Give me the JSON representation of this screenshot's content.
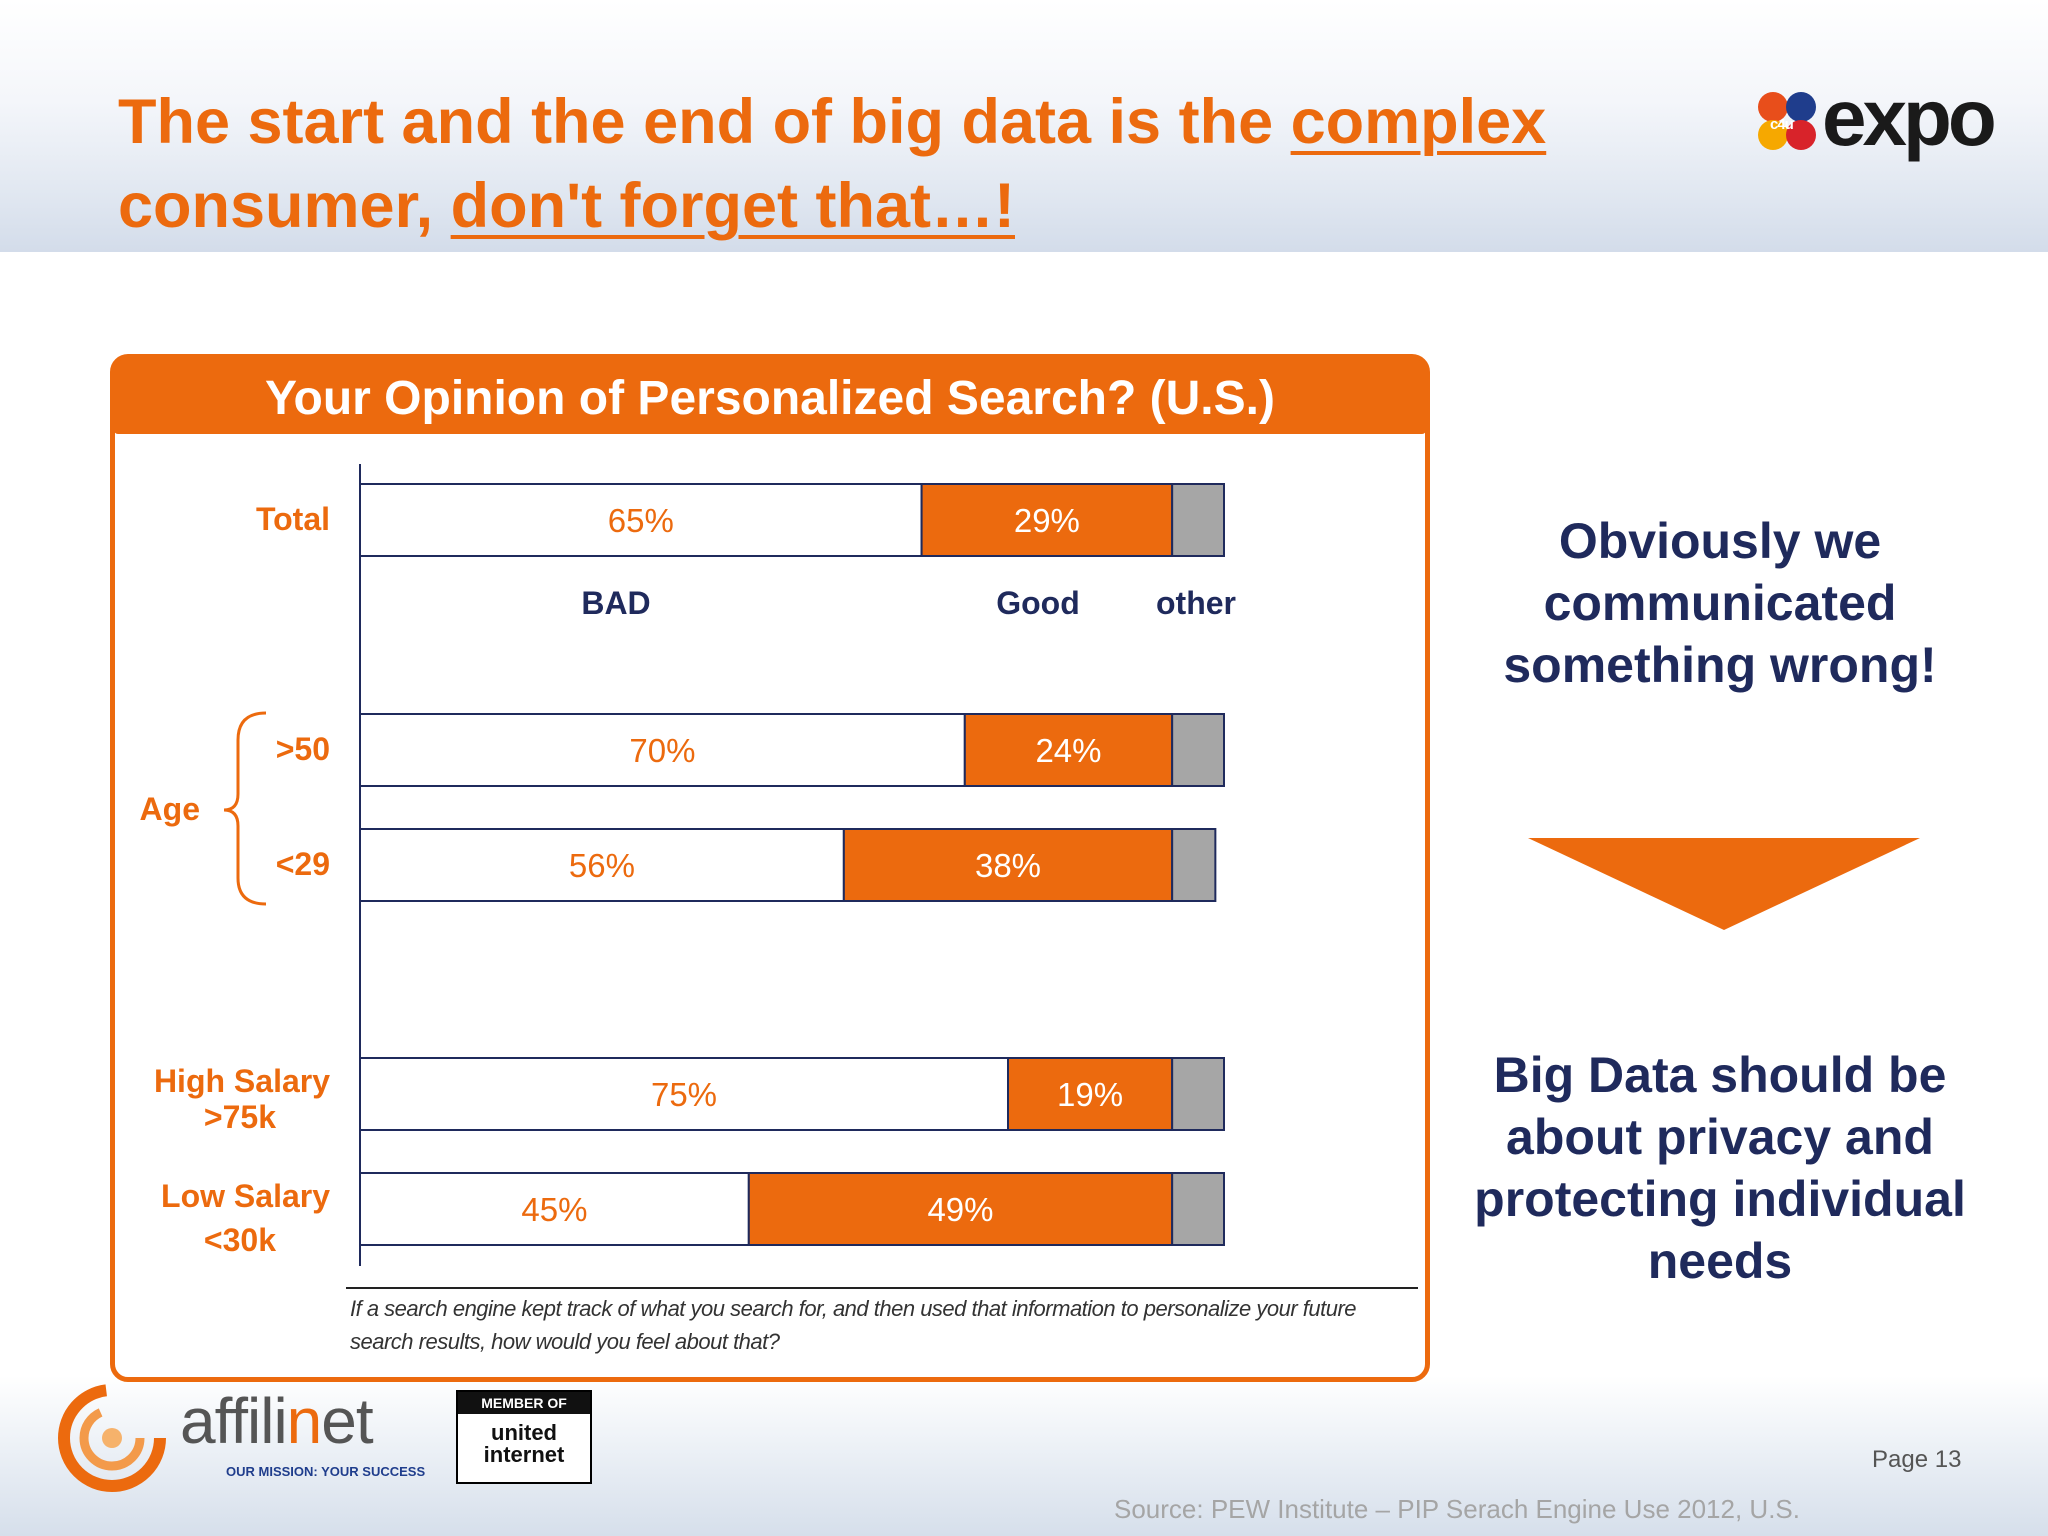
{
  "slide": {
    "title_part1": "The start and the end of big data is the ",
    "title_underline1": "complex",
    "title_part2": "consumer, ",
    "title_underline2": "don't forget that…!",
    "page_label": "Page 13",
    "source": "Source: PEW Institute – PIP Serach Engine Use 2012, U.S."
  },
  "logos": {
    "expo_badge": "c4u",
    "expo_word": "expo",
    "affilinet_word_pre": "affili",
    "affilinet_word_o": "n",
    "affilinet_word_post": "et",
    "affilinet_tagline": "OUR MISSION: YOUR SUCCESS",
    "member_of": "MEMBER OF",
    "united": "united",
    "internet": "internet"
  },
  "side": {
    "top_text": "Obviously we communicated something wrong!",
    "bottom_text": "Big Data should be about privacy and protecting individual needs"
  },
  "footnote": "If a search engine kept track of what you search for, and then used that information to personalize your future search results, how would you feel about that?",
  "colors": {
    "accent": "#ec6a0e",
    "navy": "#1f2a5c",
    "other_gray": "#a6a6a6",
    "bar_border": "#1f2a5c"
  },
  "chart_data": {
    "type": "bar",
    "orientation": "horizontal",
    "stacked": true,
    "title": "Your Opinion of Personalized Search? (U.S.)",
    "series_labels": [
      "BAD",
      "Good",
      "other"
    ],
    "group_label": "Age",
    "categories": [
      {
        "label": "Total",
        "values": [
          65,
          29,
          6
        ],
        "labels": [
          "65%",
          "29%",
          ""
        ]
      },
      {
        "label": ">50",
        "values": [
          70,
          24,
          6
        ],
        "labels": [
          "70%",
          "24%",
          ""
        ]
      },
      {
        "label": "<29",
        "values": [
          56,
          38,
          5
        ],
        "labels": [
          "56%",
          "38%",
          ""
        ]
      },
      {
        "label": "High Salary\n>75k",
        "values": [
          75,
          19,
          6
        ],
        "labels": [
          "75%",
          "19%",
          ""
        ]
      },
      {
        "label": "Low Salary\n<30k",
        "values": [
          45,
          49,
          6
        ],
        "labels": [
          "45%",
          "49%",
          ""
        ]
      }
    ],
    "xlim": [
      0,
      100
    ],
    "grid": false
  }
}
